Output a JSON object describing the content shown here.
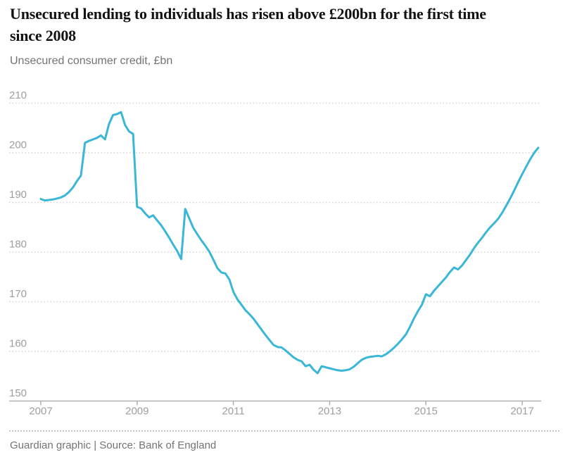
{
  "header": {
    "title": "Unsecured lending to individuals has risen above £200bn for the first time\nsince 2008",
    "subtitle": "Unsecured consumer credit, £bn"
  },
  "footer": {
    "credit": "Guardian graphic | Source: Bank of England"
  },
  "colors": {
    "line": "#3ab6d7",
    "grid": "#d2d2d2",
    "axis": "#b0b0b0",
    "tick_label": "#9e9e9e",
    "title": "#121212",
    "muted_text": "#737373"
  },
  "chart_data": {
    "type": "line",
    "title": "Unsecured consumer credit, £bn",
    "unit": "£bn",
    "frequency": "monthly",
    "x_start": "2007-01",
    "x_end": "2017-05",
    "x_tick_labels": [
      "2007",
      "2009",
      "2011",
      "2013",
      "2015",
      "2017"
    ],
    "y_ticks": [
      150,
      160,
      170,
      180,
      190,
      200,
      210
    ],
    "ylim": [
      150,
      212
    ],
    "grid": "horizontal-dotted",
    "legend": "none",
    "series": [
      {
        "name": "Unsecured consumer credit",
        "values": [
          190.7,
          190.4,
          190.5,
          190.6,
          190.8,
          191.0,
          191.4,
          192.1,
          193.0,
          194.3,
          195.4,
          202.0,
          202.4,
          202.7,
          203.0,
          203.5,
          202.7,
          205.8,
          207.6,
          207.8,
          208.2,
          205.6,
          204.3,
          203.8,
          189.1,
          188.8,
          187.8,
          187.0,
          187.4,
          186.4,
          185.4,
          184.2,
          182.9,
          181.5,
          180.2,
          178.6,
          188.7,
          186.8,
          184.9,
          183.6,
          182.4,
          181.3,
          180.1,
          178.5,
          176.8,
          175.9,
          175.7,
          174.5,
          172.0,
          170.5,
          169.4,
          168.3,
          167.5,
          166.6,
          165.5,
          164.4,
          163.3,
          162.3,
          161.3,
          160.9,
          160.8,
          160.2,
          159.5,
          158.8,
          158.3,
          158.0,
          157.0,
          157.3,
          156.3,
          155.6,
          157.0,
          156.8,
          156.6,
          156.4,
          156.2,
          156.1,
          156.2,
          156.4,
          156.9,
          157.6,
          158.3,
          158.7,
          158.9,
          159.0,
          159.1,
          159.0,
          159.4,
          160.0,
          160.7,
          161.5,
          162.4,
          163.4,
          164.9,
          166.6,
          168.1,
          169.4,
          171.5,
          171.1,
          172.2,
          173.1,
          174.0,
          174.9,
          176.0,
          176.9,
          176.5,
          177.3,
          178.4,
          179.5,
          180.8,
          181.9,
          182.9,
          184.0,
          185.0,
          185.8,
          186.7,
          187.9,
          189.3,
          190.8,
          192.4,
          194.1,
          195.7,
          197.2,
          198.7,
          200.0,
          201.0
        ]
      }
    ]
  }
}
